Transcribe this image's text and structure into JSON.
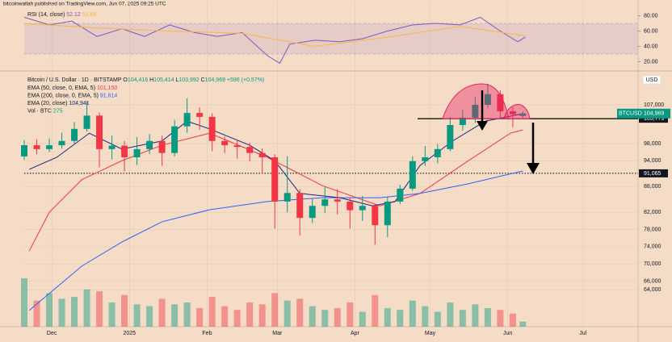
{
  "publisher": "bitcoinwallah published on TradingView.com, Jun 07, 2025 09:25 UTC",
  "chart_data": [
    {
      "type": "candlestick",
      "title": "Bitcoin / U.S. Dollar · 1D · BITSTAMP",
      "ohlc": [
        {
          "key": "O",
          "label": "104,416"
        },
        {
          "key": "H",
          "label": "105,414"
        },
        {
          "key": "L",
          "label": "103,992"
        },
        {
          "key": "C",
          "label": "104,969"
        }
      ],
      "change": "+596 (+0.57%)",
      "currency": "USD",
      "up_color": "#089981",
      "down_color": "#f23645",
      "x": [
        0,
        5,
        10,
        15,
        20,
        25,
        30,
        35,
        40,
        45,
        50,
        55,
        60,
        65,
        70,
        75,
        80,
        85,
        90,
        95,
        100,
        105,
        110,
        115,
        120,
        125,
        130,
        135,
        140,
        145,
        150,
        155,
        160,
        165,
        170,
        175,
        180,
        185,
        190,
        195,
        199
      ],
      "open": [
        95000,
        97600,
        96700,
        97600,
        98600,
        101400,
        104500,
        96700,
        97500,
        94800,
        96700,
        98600,
        95800,
        102000,
        105100,
        104200,
        98600,
        97600,
        97200,
        95800,
        94800,
        84500,
        86500,
        80700,
        83500,
        85000,
        84500,
        82500,
        83500,
        79000,
        84500,
        87500,
        93900,
        94800,
        96700,
        102300,
        104000,
        107000,
        109500,
        105500,
        104416
      ],
      "high": [
        98800,
        99000,
        99200,
        100500,
        103000,
        107800,
        105200,
        99800,
        98600,
        99500,
        100200,
        99900,
        103500,
        108500,
        106400,
        105000,
        99700,
        98900,
        98200,
        96900,
        95500,
        95000,
        87400,
        85300,
        88000,
        87400,
        85500,
        85800,
        84000,
        85500,
        88400,
        95000,
        97400,
        97900,
        104200,
        105800,
        108800,
        111900,
        110400,
        106500,
        105414
      ],
      "low": [
        94200,
        95500,
        96000,
        96800,
        98000,
        100800,
        92500,
        94300,
        91500,
        93000,
        95600,
        92800,
        95000,
        100500,
        101200,
        96200,
        95800,
        94500,
        93800,
        91000,
        78200,
        82000,
        76600,
        79500,
        81800,
        81500,
        78200,
        80000,
        74500,
        76200,
        83900,
        87000,
        92800,
        93400,
        96200,
        101000,
        102800,
        106200,
        103900,
        101800,
        103992
      ],
      "close": [
        97600,
        96700,
        97600,
        98600,
        101400,
        104500,
        96700,
        97500,
        94800,
        96700,
        98600,
        95800,
        102000,
        105100,
        104200,
        98600,
        97600,
        97200,
        95800,
        94800,
        84500,
        86500,
        80700,
        83500,
        85000,
        84500,
        82500,
        83500,
        79000,
        84500,
        87500,
        93900,
        94800,
        96700,
        102300,
        104000,
        107000,
        109500,
        105500,
        104800,
        104969
      ],
      "series": [
        {
          "name": "EMA (50, close, 0, EMA, 5)",
          "color": "#f23645",
          "value_label": "101,150",
          "x": [
            2,
            10,
            23,
            39,
            55,
            74,
            97,
            119,
            142,
            158,
            177,
            194,
            199
          ],
          "values": [
            73000,
            82000,
            89600,
            94000,
            97600,
            100400,
            94800,
            88200,
            83500,
            86400,
            93900,
            100400,
            101150
          ]
        },
        {
          "name": "EMA (200, close, 0, EMA, 5)",
          "color": "#2962ff",
          "value_label": "91,614",
          "x": [
            2,
            23,
            39,
            55,
            74,
            97,
            119,
            142,
            158,
            177,
            199
          ],
          "values": [
            59200,
            69500,
            75100,
            79800,
            82600,
            84500,
            85400,
            85400,
            86400,
            88600,
            91614
          ]
        },
        {
          "name": "EMA (20, close)",
          "color": "#1a237e",
          "value_label": "104,941",
          "x": [
            2,
            13,
            26,
            39,
            55,
            65,
            74,
            90,
            100,
            110,
            126,
            139,
            148,
            158,
            171,
            184,
            199
          ],
          "values": [
            92000,
            94800,
            100400,
            96700,
            98600,
            103200,
            101400,
            97600,
            94000,
            86400,
            85400,
            83500,
            84500,
            92900,
            98600,
            103200,
            104941
          ]
        }
      ],
      "volume": {
        "name": "Vol · BTC",
        "values": [
          2600,
          1400,
          1800,
          1500,
          1600,
          2000,
          1900,
          1300,
          1700,
          1200,
          1100,
          1500,
          1200,
          1300,
          1000,
          1600,
          1100,
          900,
          1300,
          1200,
          1800,
          1400,
          1500,
          1100,
          900,
          1000,
          1300,
          800,
          1700,
          1000,
          900,
          1400,
          1100,
          800,
          1300,
          900,
          1200,
          1000,
          900,
          700,
          275
        ]
      },
      "last_price": {
        "symbol": "BTCUSD",
        "value": 104969,
        "label": "104,969"
      },
      "levels": [
        {
          "value": 103779,
          "label": "103,779",
          "style": "solid"
        },
        {
          "value": 91065,
          "label": "91,065",
          "style": "dotted"
        }
      ],
      "xlim": [
        0,
        245
      ],
      "xticks": [
        {
          "value": 11,
          "label": "Dec"
        },
        {
          "value": 42,
          "label": "2025"
        },
        {
          "value": 73,
          "label": "Feb"
        },
        {
          "value": 101,
          "label": "Mar"
        },
        {
          "value": 132,
          "label": "Apr"
        },
        {
          "value": 162,
          "label": "May"
        },
        {
          "value": 193,
          "label": "Jun"
        },
        {
          "value": 223,
          "label": "Jul"
        }
      ],
      "ylim": [
        55400,
        114500
      ],
      "yticks": [
        {
          "value": 107000,
          "label": "107,000"
        },
        {
          "value": 98000,
          "label": "98,000"
        },
        {
          "value": 94000,
          "label": "94,000"
        },
        {
          "value": 88000,
          "label": "88,000"
        },
        {
          "value": 82000,
          "label": "82,000"
        },
        {
          "value": 78000,
          "label": "78,000"
        },
        {
          "value": 74000,
          "label": "74,000"
        },
        {
          "value": 70000,
          "label": "70,000"
        },
        {
          "value": 66000,
          "label": "66,000"
        },
        {
          "value": 64000,
          "label": "64,000"
        }
      ],
      "grid": true
    },
    {
      "type": "line",
      "series": [
        {
          "name": "RSI (14, close)",
          "color": "#7e57c2",
          "x": [
            0,
            10,
            19,
            29,
            39,
            48,
            58,
            68,
            77,
            87,
            97,
            102,
            106,
            116,
            126,
            135,
            145,
            155,
            164,
            174,
            182,
            190,
            197,
            200
          ],
          "values": [
            78,
            68,
            73,
            53,
            63,
            53,
            68,
            58,
            53,
            58,
            28,
            18,
            43,
            48,
            46,
            50,
            60,
            68,
            70,
            68,
            78,
            60,
            46,
            52.12
          ]
        },
        {
          "color": "#f5b942",
          "x": [
            0,
            29,
            58,
            87,
            116,
            145,
            174,
            200
          ],
          "values": [
            70,
            64,
            60,
            57,
            40,
            52,
            66,
            53.68
          ]
        }
      ],
      "bands": [
        30,
        70
      ],
      "ylim": [
        10,
        90
      ],
      "yticks": [
        {
          "value": 80,
          "label": "80.00"
        },
        {
          "value": 60,
          "label": "60.00"
        },
        {
          "value": 40,
          "label": "40.00"
        },
        {
          "value": 20,
          "label": "20.00"
        }
      ]
    }
  ]
}
